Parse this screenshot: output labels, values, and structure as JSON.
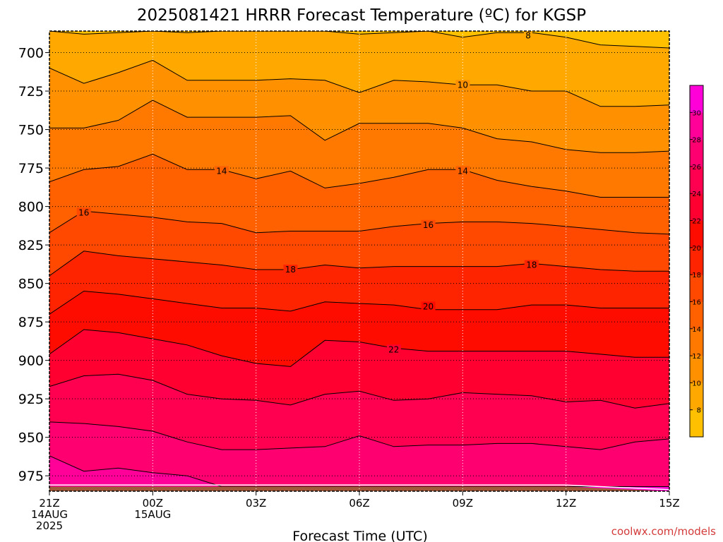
{
  "chart_data": {
    "type": "contour",
    "title": "2025081421 HRRR Forecast Temperature (ºC) for KGSP",
    "xlabel": "Forecast Time (UTC)",
    "ylabel": "",
    "y_axis": {
      "reversed": true,
      "ylim": [
        985,
        686
      ],
      "ticks": [
        700,
        725,
        750,
        775,
        800,
        825,
        850,
        875,
        900,
        925,
        950,
        975
      ]
    },
    "x_axis": {
      "xlim": [
        0,
        18
      ],
      "ticks": [
        {
          "x": 0,
          "lines": [
            "21Z",
            "14AUG",
            "2025"
          ]
        },
        {
          "x": 3,
          "lines": [
            "00Z",
            "15AUG"
          ]
        },
        {
          "x": 6,
          "lines": [
            "03Z"
          ]
        },
        {
          "x": 9,
          "lines": [
            "06Z"
          ]
        },
        {
          "x": 12,
          "lines": [
            "09Z"
          ]
        },
        {
          "x": 15,
          "lines": [
            "12Z"
          ]
        },
        {
          "x": 18,
          "lines": [
            "15Z"
          ]
        }
      ]
    },
    "grid": true,
    "colorbar": {
      "placement": "right",
      "levels": [
        6,
        8,
        10,
        12,
        14,
        16,
        18,
        20,
        22,
        24,
        26,
        28,
        30,
        32
      ],
      "tick_labels": [
        8,
        10,
        12,
        14,
        16,
        18,
        20,
        22,
        24,
        26,
        28,
        30
      ],
      "colors": [
        "#ffc000",
        "#ffa800",
        "#ff9000",
        "#ff7800",
        "#ff6000",
        "#ff4800",
        "#ff2400",
        "#ff0c00",
        "#ff0030",
        "#ff0050",
        "#ff0070",
        "#ff0098",
        "#ff00d8"
      ]
    },
    "fill_levels": [
      {
        "value": 6,
        "color": "#ffc000",
        "y": [
          680,
          680,
          680,
          680,
          680,
          680,
          680,
          680,
          680,
          680,
          680,
          680,
          680,
          680,
          680,
          680,
          680,
          680,
          680
        ]
      },
      {
        "value": 8,
        "color": "#ffa800",
        "y": [
          686,
          688,
          687,
          686,
          687,
          686,
          686,
          686,
          686,
          688,
          687,
          686,
          690,
          687,
          687,
          690,
          695,
          696,
          697
        ]
      },
      {
        "value": 10,
        "color": "#ff9000",
        "y": [
          710,
          720,
          713,
          705,
          718,
          718,
          718,
          717,
          718,
          726,
          718,
          719,
          721,
          721,
          725,
          725,
          735,
          735,
          734
        ]
      },
      {
        "value": 12,
        "color": "#ff7800",
        "y": [
          749,
          749,
          744,
          731,
          742,
          742,
          742,
          741,
          757,
          746,
          746,
          746,
          749,
          756,
          758,
          763,
          765,
          765,
          764
        ]
      },
      {
        "value": 14,
        "color": "#ff6000",
        "y": [
          784,
          776,
          774,
          766,
          776,
          776,
          782,
          777,
          788,
          785,
          781,
          776,
          776,
          783,
          787,
          790,
          794,
          794,
          794
        ]
      },
      {
        "value": 16,
        "color": "#ff4800",
        "y": [
          817,
          803,
          805,
          807,
          810,
          811,
          817,
          816,
          816,
          816,
          813,
          811,
          810,
          810,
          811,
          813,
          815,
          817,
          818
        ]
      },
      {
        "value": 18,
        "color": "#ff2400",
        "y": [
          845,
          829,
          832,
          834,
          836,
          838,
          841,
          841,
          838,
          840,
          839,
          839,
          839,
          839,
          837,
          839,
          841,
          842,
          842
        ]
      },
      {
        "value": 20,
        "color": "#ff0c00",
        "y": [
          870,
          855,
          857,
          860,
          863,
          866,
          866,
          868,
          862,
          863,
          864,
          867,
          867,
          867,
          864,
          864,
          866,
          866,
          866
        ]
      },
      {
        "value": 22,
        "color": "#ff0030",
        "y": [
          896,
          880,
          882,
          886,
          890,
          897,
          902,
          904,
          887,
          888,
          892,
          894,
          894,
          894,
          894,
          894,
          896,
          898,
          898
        ]
      },
      {
        "value": 24,
        "color": "#ff0050",
        "y": [
          917,
          910,
          909,
          913,
          922,
          925,
          926,
          929,
          922,
          920,
          926,
          925,
          921,
          922,
          923,
          927,
          926,
          931,
          928
        ]
      },
      {
        "value": 26,
        "color": "#ff0070",
        "y": [
          940,
          941,
          943,
          946,
          953,
          958,
          958,
          957,
          956,
          949,
          956,
          955,
          955,
          954,
          954,
          956,
          958,
          953,
          951
        ]
      },
      {
        "value": 28,
        "color": "#ff0098",
        "y": [
          962,
          972,
          970,
          973,
          975,
          982,
          982,
          982,
          982,
          982,
          982,
          982,
          982,
          982,
          982,
          982,
          982,
          982,
          982
        ]
      },
      {
        "value": 30,
        "color": "#ff00d8",
        "y": [
          982,
          982,
          982,
          982,
          982,
          982,
          982,
          982,
          982,
          982,
          982,
          982,
          982,
          982,
          982,
          982,
          982,
          982,
          982
        ]
      }
    ],
    "contour_labels": [
      {
        "text": "8",
        "x": 13.9,
        "y": 689
      },
      {
        "text": "10",
        "x": 12.0,
        "y": 721
      },
      {
        "text": "14",
        "x": 5.0,
        "y": 777
      },
      {
        "text": "14",
        "x": 12.0,
        "y": 777
      },
      {
        "text": "16",
        "x": 1.0,
        "y": 804
      },
      {
        "text": "16",
        "x": 11.0,
        "y": 812
      },
      {
        "text": "18",
        "x": 7.0,
        "y": 841
      },
      {
        "text": "18",
        "x": 14.0,
        "y": 838
      },
      {
        "text": "20",
        "x": 11.0,
        "y": 865
      },
      {
        "text": "22",
        "x": 10.0,
        "y": 893
      }
    ],
    "terrain": {
      "color": "#a0593a",
      "top": [
        982,
        982,
        982,
        982,
        982,
        982,
        982,
        982,
        982,
        982,
        982,
        982,
        982,
        982,
        982,
        982,
        983,
        984,
        985
      ]
    },
    "credit": "coolwx.com/models"
  }
}
